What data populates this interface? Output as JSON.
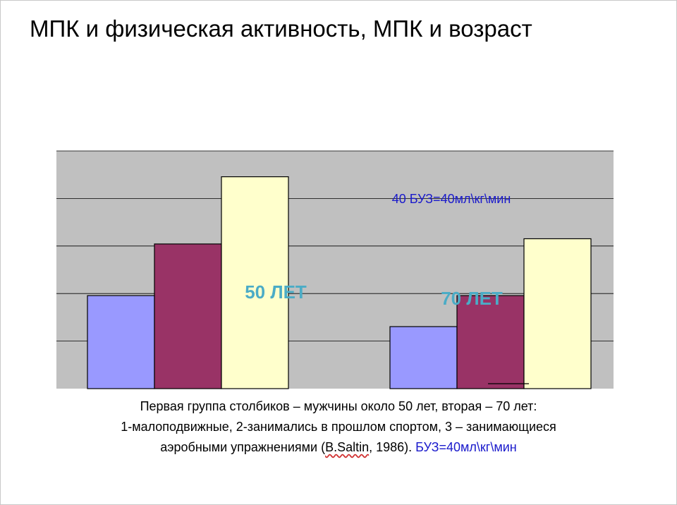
{
  "slide": {
    "title": "МПК и физическая активность, МПК и возраст"
  },
  "chart_data": {
    "type": "bar",
    "categories": [
      "50 ЛЕТ",
      "70 ЛЕТ"
    ],
    "series": [
      {
        "values": [
          18,
          12
        ]
      },
      {
        "values": [
          28,
          18
        ]
      },
      {
        "values": [
          41,
          29
        ]
      }
    ],
    "ylim": [
      0,
      46
    ],
    "grid": true,
    "annotation": "40 БУЗ=40мл\\кг\\мин",
    "colors": [
      "#9999ff",
      "#993366",
      "#ffffcc"
    ],
    "plot_background": "#c0c0c0"
  },
  "caption": {
    "line1": "Первая группа столбиков – мужчины около 50 лет, вторая – 70 лет:",
    "line2": "1-малоподвижные, 2-занимались в прошлом спортом, 3 – занимающиеся",
    "line3_prefix": "аэробными упражнениями (",
    "line3_author": "B.Saltin",
    "line3_suffix": ", 1986). ",
    "line3_unit": "БУЗ=40мл\\кг\\мин"
  }
}
